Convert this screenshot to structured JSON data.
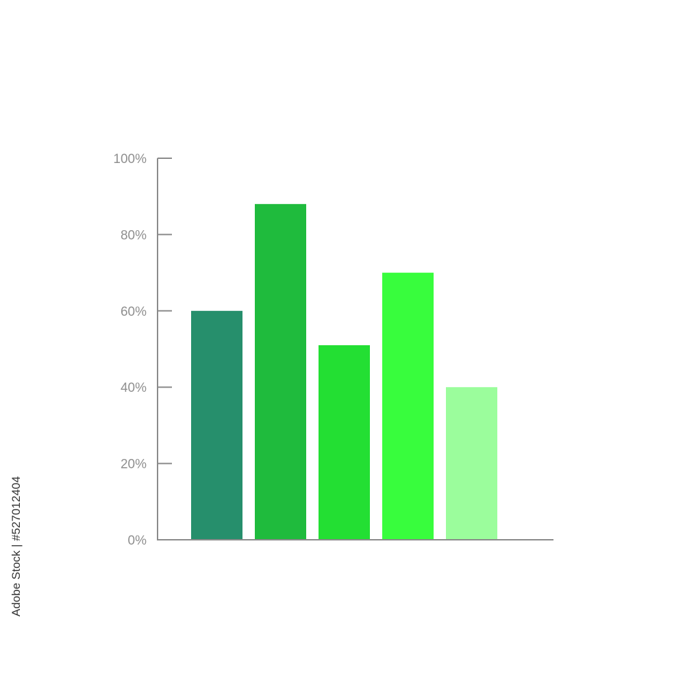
{
  "chart_data": {
    "type": "bar",
    "categories": [
      "",
      "",
      "",
      "",
      ""
    ],
    "values": [
      60,
      88,
      51,
      70,
      40
    ],
    "colors": [
      "#268f6c",
      "#1fbb3d",
      "#23df33",
      "#38fd3d",
      "#9bfd9c"
    ],
    "ylim": [
      0,
      100
    ],
    "yticks": [
      0,
      20,
      40,
      60,
      80,
      100
    ],
    "ytick_suffix": "%",
    "title": "",
    "xlabel": "",
    "ylabel": "",
    "grid": false,
    "legend": "none"
  },
  "watermark": {
    "id_text": "Adobe Stock | #527012404"
  }
}
